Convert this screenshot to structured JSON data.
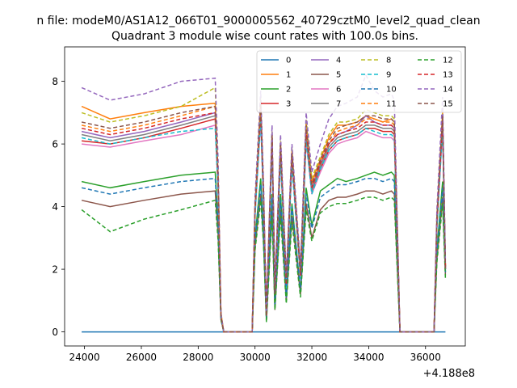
{
  "figure": {
    "suptitle": "n file: modeM0/AS1A12_066T01_9000005562_40729cztM0_level2_quad_clean"
  },
  "chart_data": {
    "type": "line",
    "title": "Quadrant 3 module wise count rates with 100.0s bins.",
    "xlabel": "",
    "ylabel": "",
    "x_offset_label": "+4.188e8",
    "x_tick_labels": [
      "24000",
      "26000",
      "28000",
      "30000",
      "32000",
      "34000",
      "36000"
    ],
    "y_tick_labels": [
      "0",
      "2",
      "4",
      "6",
      "8"
    ],
    "xlim": [
      23300,
      37400
    ],
    "ylim": [
      -0.45,
      9.1
    ],
    "grid": false,
    "legend_position": "top-right",
    "legend_columns": 4,
    "x": [
      23900,
      24900,
      26100,
      27400,
      28600,
      28700,
      28800,
      28900,
      29900,
      30000,
      30200,
      30300,
      30400,
      30600,
      30700,
      30900,
      31100,
      31300,
      31600,
      31800,
      32000,
      32300,
      32600,
      32900,
      33200,
      33600,
      33900,
      34200,
      34500,
      34800,
      34900,
      35000,
      35100,
      36300,
      36400,
      36600,
      36700
    ],
    "series": [
      {
        "name": "0",
        "color": "#1f77b4",
        "dash": "solid",
        "values": [
          0,
          0,
          0,
          0,
          0,
          0,
          0,
          0,
          0,
          0,
          0,
          0,
          0,
          0,
          0,
          0,
          0,
          0,
          0,
          0,
          0,
          0,
          0,
          0,
          0,
          0,
          0,
          0,
          0,
          0,
          0,
          0,
          0,
          0,
          0,
          0,
          0
        ]
      },
      {
        "name": "1",
        "color": "#ff7f0e",
        "dash": "solid",
        "values": [
          7.2,
          6.8,
          7.0,
          7.2,
          7.3,
          5.0,
          0.6,
          0,
          0,
          4.0,
          7.4,
          4.5,
          0.6,
          6.3,
          1.3,
          6.0,
          1.6,
          5.8,
          1.9,
          6.7,
          4.8,
          5.5,
          6.2,
          6.6,
          6.6,
          6.7,
          6.9,
          6.8,
          6.7,
          6.8,
          6.7,
          3.5,
          0,
          0,
          3.6,
          7.0,
          2.1
        ]
      },
      {
        "name": "2",
        "color": "#2ca02c",
        "dash": "solid",
        "values": [
          4.8,
          4.6,
          4.8,
          5.0,
          5.1,
          3.5,
          0.5,
          0,
          0,
          3.0,
          4.9,
          3.2,
          0.4,
          4.4,
          0.8,
          4.4,
          1.1,
          4.1,
          1.3,
          4.6,
          3.4,
          4.5,
          4.7,
          4.9,
          4.8,
          4.9,
          5.0,
          5.1,
          5.0,
          5.1,
          5.0,
          2.5,
          0,
          0,
          2.6,
          4.8,
          1.9
        ]
      },
      {
        "name": "3",
        "color": "#d62728",
        "dash": "solid",
        "values": [
          6.1,
          6.0,
          6.2,
          6.5,
          6.8,
          4.6,
          0.5,
          0,
          0,
          3.8,
          6.9,
          4.2,
          0.5,
          6.0,
          1.2,
          5.7,
          1.5,
          5.5,
          1.8,
          6.3,
          4.5,
          5.2,
          5.8,
          6.1,
          6.2,
          6.3,
          6.5,
          6.5,
          6.4,
          6.4,
          6.3,
          3.3,
          0,
          0,
          3.4,
          6.6,
          2.0
        ]
      },
      {
        "name": "4",
        "color": "#9467bd",
        "dash": "solid",
        "values": [
          6.4,
          6.2,
          6.4,
          6.7,
          7.0,
          4.8,
          0.5,
          0,
          0,
          3.9,
          7.1,
          4.3,
          0.5,
          6.2,
          1.2,
          5.9,
          1.5,
          5.6,
          1.8,
          6.4,
          4.6,
          5.4,
          6.0,
          6.3,
          6.4,
          6.6,
          6.9,
          6.7,
          6.6,
          6.6,
          6.5,
          3.4,
          0,
          0,
          3.5,
          6.8,
          2.1
        ]
      },
      {
        "name": "5",
        "color": "#8c564b",
        "dash": "solid",
        "values": [
          4.2,
          4.0,
          4.2,
          4.4,
          4.5,
          3.1,
          0.4,
          0,
          0,
          2.7,
          4.4,
          2.9,
          0.4,
          3.9,
          0.7,
          3.9,
          1.0,
          3.7,
          1.2,
          4.1,
          3.0,
          3.9,
          4.2,
          4.3,
          4.3,
          4.4,
          4.5,
          4.5,
          4.4,
          4.5,
          4.4,
          2.2,
          0,
          0,
          2.3,
          4.3,
          1.8
        ]
      },
      {
        "name": "6",
        "color": "#e377c2",
        "dash": "solid",
        "values": [
          6.0,
          5.9,
          6.1,
          6.3,
          6.6,
          4.5,
          0.5,
          0,
          0,
          3.7,
          6.8,
          4.1,
          0.5,
          5.9,
          1.1,
          5.6,
          1.4,
          5.4,
          1.7,
          6.1,
          4.4,
          5.1,
          5.7,
          6.0,
          6.1,
          6.2,
          6.4,
          6.3,
          6.2,
          6.2,
          6.1,
          3.2,
          0,
          0,
          3.3,
          6.5,
          2.0
        ]
      },
      {
        "name": "7",
        "color": "#7f7f7f",
        "dash": "solid",
        "values": [
          6.3,
          6.1,
          6.3,
          6.6,
          6.9,
          4.7,
          0.5,
          0,
          0,
          3.8,
          7.0,
          4.2,
          0.5,
          6.1,
          1.2,
          5.8,
          1.5,
          5.6,
          1.8,
          6.3,
          4.5,
          5.3,
          5.9,
          6.2,
          6.3,
          6.4,
          6.6,
          6.6,
          6.5,
          6.5,
          6.4,
          3.3,
          0,
          0,
          3.4,
          6.7,
          2.0
        ]
      },
      {
        "name": "8",
        "color": "#bcbd22",
        "dash": "dashed",
        "values": [
          7.0,
          6.7,
          6.9,
          7.2,
          7.8,
          5.2,
          0.6,
          0,
          0,
          4.1,
          7.5,
          4.6,
          0.6,
          6.4,
          1.3,
          6.1,
          1.7,
          5.9,
          2.0,
          6.8,
          4.9,
          5.6,
          6.3,
          6.7,
          6.7,
          6.8,
          7.1,
          7.0,
          6.9,
          6.9,
          6.8,
          3.5,
          0,
          0,
          3.7,
          7.1,
          2.1
        ]
      },
      {
        "name": "9",
        "color": "#17becf",
        "dash": "dashed",
        "values": [
          6.2,
          6.0,
          6.2,
          6.4,
          6.5,
          4.5,
          0.5,
          0,
          0,
          3.7,
          6.8,
          4.1,
          0.5,
          5.8,
          1.1,
          5.5,
          1.4,
          5.3,
          1.7,
          6.1,
          4.4,
          5.2,
          5.8,
          6.1,
          6.2,
          6.3,
          6.5,
          6.4,
          6.3,
          6.3,
          6.2,
          3.2,
          0,
          0,
          3.3,
          6.5,
          2.0
        ]
      },
      {
        "name": "10",
        "color": "#1f77b4",
        "dash": "dashed",
        "values": [
          4.6,
          4.4,
          4.6,
          4.8,
          4.9,
          3.4,
          0.4,
          0,
          0,
          2.9,
          4.7,
          3.1,
          0.4,
          4.3,
          0.8,
          4.2,
          1.1,
          4.0,
          1.3,
          4.4,
          3.3,
          4.3,
          4.5,
          4.7,
          4.7,
          4.8,
          4.9,
          4.9,
          4.8,
          4.9,
          4.8,
          2.4,
          0,
          0,
          2.5,
          4.6,
          1.9
        ]
      },
      {
        "name": "11",
        "color": "#ff7f0e",
        "dash": "dashed",
        "values": [
          6.6,
          6.4,
          6.6,
          6.9,
          7.2,
          4.9,
          0.5,
          0,
          0,
          3.9,
          7.2,
          4.4,
          0.5,
          6.2,
          1.2,
          5.9,
          1.6,
          5.7,
          1.9,
          6.5,
          4.7,
          5.4,
          6.0,
          6.4,
          6.5,
          6.6,
          6.8,
          6.8,
          6.7,
          6.7,
          6.6,
          3.4,
          0,
          0,
          3.5,
          6.9,
          2.0
        ]
      },
      {
        "name": "12",
        "color": "#2ca02c",
        "dash": "dashed",
        "values": [
          3.9,
          3.2,
          3.6,
          3.9,
          4.2,
          2.9,
          0.4,
          0,
          0,
          2.6,
          4.2,
          2.8,
          0.3,
          3.7,
          0.7,
          3.7,
          0.9,
          3.5,
          1.1,
          3.9,
          2.9,
          3.8,
          4.0,
          4.1,
          4.1,
          4.2,
          4.3,
          4.3,
          4.2,
          4.3,
          4.2,
          2.1,
          0,
          0,
          2.2,
          4.1,
          1.7
        ]
      },
      {
        "name": "13",
        "color": "#d62728",
        "dash": "dashed",
        "values": [
          6.5,
          6.3,
          6.5,
          6.8,
          7.0,
          4.8,
          0.5,
          0,
          0,
          3.9,
          7.1,
          4.3,
          0.5,
          6.2,
          1.2,
          5.9,
          1.5,
          5.6,
          1.8,
          6.4,
          4.6,
          5.4,
          6.0,
          6.3,
          6.4,
          6.5,
          6.7,
          6.7,
          6.6,
          6.6,
          6.5,
          3.4,
          0,
          0,
          3.5,
          6.8,
          2.0
        ]
      },
      {
        "name": "14",
        "color": "#9467bd",
        "dash": "dashed",
        "values": [
          7.8,
          7.4,
          7.6,
          8.0,
          8.1,
          5.5,
          0.6,
          0,
          0,
          4.3,
          7.7,
          4.8,
          0.6,
          6.6,
          1.4,
          6.3,
          1.8,
          6.0,
          2.1,
          7.0,
          5.1,
          6.0,
          6.8,
          7.2,
          7.3,
          7.5,
          8.2,
          7.7,
          7.5,
          7.6,
          7.4,
          3.8,
          0,
          0,
          3.9,
          7.5,
          2.2
        ]
      },
      {
        "name": "15",
        "color": "#8c564b",
        "dash": "dashed",
        "values": [
          6.7,
          6.5,
          6.7,
          7.0,
          7.2,
          4.9,
          0.5,
          0,
          0,
          4.0,
          7.3,
          4.4,
          0.5,
          6.3,
          1.2,
          6.0,
          1.6,
          5.7,
          1.9,
          6.6,
          4.7,
          5.5,
          6.1,
          6.5,
          6.6,
          6.7,
          6.9,
          6.9,
          6.8,
          6.8,
          6.7,
          3.5,
          0,
          0,
          3.6,
          6.9,
          2.0
        ]
      }
    ]
  }
}
